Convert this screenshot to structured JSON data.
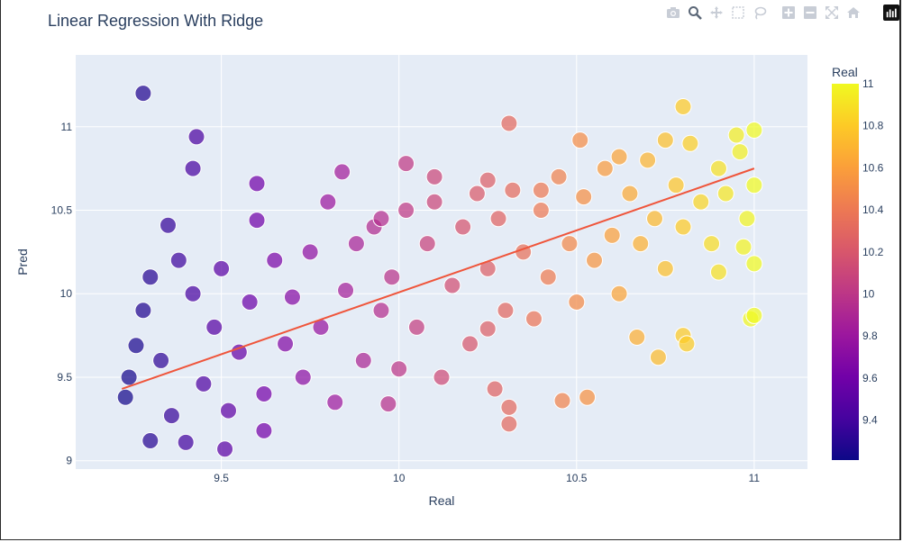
{
  "title": "Linear Regression With Ridge",
  "modebar": {
    "icons": [
      "camera-icon",
      "zoom-icon",
      "pan-icon",
      "box-select-icon",
      "lasso-icon",
      "zoom-in-icon",
      "zoom-out-icon",
      "autoscale-icon",
      "reset-axes-icon"
    ],
    "logo": "plotly-logo-icon"
  },
  "colorbar": {
    "title": "Real",
    "ticks": [
      "11",
      "10.8",
      "10.6",
      "10.4",
      "10.2",
      "10",
      "9.8",
      "9.6",
      "9.4"
    ],
    "tick_values": [
      11,
      10.8,
      10.6,
      10.4,
      10.2,
      10,
      9.8,
      9.6,
      9.4
    ],
    "range": [
      9.21,
      11.0
    ],
    "colorscale": [
      "#0d0887",
      "#46039f",
      "#7201a8",
      "#9c179e",
      "#bd3786",
      "#d8576b",
      "#ed7953",
      "#fb9f3a",
      "#fdca26",
      "#f0f921"
    ]
  },
  "chart_data": {
    "type": "scatter",
    "title": "Linear Regression With Ridge",
    "xlabel": "Real",
    "ylabel": "Pred",
    "xlim": [
      9.09,
      11.15
    ],
    "ylim": [
      8.95,
      11.43
    ],
    "x_ticks": [
      "9.5",
      "10",
      "10.5",
      "11"
    ],
    "x_tick_values": [
      9.5,
      10,
      10.5,
      11
    ],
    "y_ticks": [
      "9",
      "9.5",
      "10",
      "10.5",
      "11"
    ],
    "y_tick_values": [
      9,
      9.5,
      10,
      10.5,
      11
    ],
    "grid": true,
    "fit_line": {
      "color": "#ef553b",
      "x": [
        9.22,
        11.0
      ],
      "y": [
        9.43,
        10.75
      ]
    },
    "marker_color_by": "x",
    "points": [
      [
        9.28,
        11.2
      ],
      [
        9.43,
        10.94
      ],
      [
        9.42,
        10.75
      ],
      [
        9.35,
        10.41
      ],
      [
        9.6,
        10.66
      ],
      [
        9.84,
        10.73
      ],
      [
        10.31,
        11.02
      ],
      [
        10.51,
        10.92
      ],
      [
        10.8,
        11.12
      ],
      [
        10.02,
        10.78
      ],
      [
        9.3,
        9.12
      ],
      [
        9.4,
        9.11
      ],
      [
        9.51,
        9.07
      ],
      [
        9.97,
        9.34
      ],
      [
        10.31,
        9.22
      ],
      [
        10.31,
        9.32
      ],
      [
        10.46,
        9.36
      ],
      [
        10.53,
        9.38
      ],
      [
        10.27,
        9.43
      ],
      [
        9.62,
        9.18
      ],
      [
        10.73,
        9.62
      ],
      [
        10.8,
        9.75
      ],
      [
        10.81,
        9.7
      ],
      [
        10.99,
        9.85
      ],
      [
        11.0,
        9.87
      ],
      [
        11.0,
        10.18
      ],
      [
        10.97,
        10.28
      ],
      [
        10.9,
        10.13
      ],
      [
        10.67,
        9.74
      ],
      [
        10.25,
        9.79
      ],
      [
        9.23,
        9.38
      ],
      [
        9.24,
        9.5
      ],
      [
        9.26,
        9.69
      ],
      [
        9.28,
        9.9
      ],
      [
        9.3,
        10.1
      ],
      [
        9.33,
        9.6
      ],
      [
        9.36,
        9.27
      ],
      [
        9.38,
        10.2
      ],
      [
        9.42,
        10.0
      ],
      [
        9.45,
        9.46
      ],
      [
        9.48,
        9.8
      ],
      [
        9.5,
        10.15
      ],
      [
        9.52,
        9.3
      ],
      [
        9.55,
        9.65
      ],
      [
        9.58,
        9.95
      ],
      [
        9.6,
        10.44
      ],
      [
        9.62,
        9.4
      ],
      [
        9.65,
        10.2
      ],
      [
        9.68,
        9.7
      ],
      [
        9.7,
        9.98
      ],
      [
        9.73,
        9.5
      ],
      [
        9.75,
        10.25
      ],
      [
        9.78,
        9.8
      ],
      [
        9.8,
        10.55
      ],
      [
        9.82,
        9.35
      ],
      [
        9.85,
        10.02
      ],
      [
        9.88,
        10.3
      ],
      [
        9.9,
        9.6
      ],
      [
        9.93,
        10.4
      ],
      [
        9.95,
        9.9
      ],
      [
        9.98,
        10.1
      ],
      [
        10.0,
        9.55
      ],
      [
        10.02,
        10.5
      ],
      [
        10.05,
        9.8
      ],
      [
        10.08,
        10.3
      ],
      [
        10.1,
        10.7
      ],
      [
        10.12,
        9.5
      ],
      [
        10.15,
        10.05
      ],
      [
        10.18,
        10.4
      ],
      [
        10.2,
        9.7
      ],
      [
        10.22,
        10.6
      ],
      [
        10.25,
        10.15
      ],
      [
        10.28,
        10.45
      ],
      [
        10.3,
        9.9
      ],
      [
        10.32,
        10.62
      ],
      [
        10.35,
        10.25
      ],
      [
        10.38,
        9.85
      ],
      [
        10.4,
        10.5
      ],
      [
        10.42,
        10.1
      ],
      [
        10.45,
        10.7
      ],
      [
        10.48,
        10.3
      ],
      [
        10.5,
        9.95
      ],
      [
        10.52,
        10.58
      ],
      [
        10.55,
        10.2
      ],
      [
        10.58,
        10.75
      ],
      [
        10.6,
        10.35
      ],
      [
        10.62,
        10.0
      ],
      [
        10.65,
        10.6
      ],
      [
        10.68,
        10.3
      ],
      [
        10.7,
        10.8
      ],
      [
        10.72,
        10.45
      ],
      [
        10.75,
        10.15
      ],
      [
        10.78,
        10.65
      ],
      [
        10.8,
        10.4
      ],
      [
        10.82,
        10.9
      ],
      [
        10.85,
        10.55
      ],
      [
        10.88,
        10.3
      ],
      [
        10.9,
        10.75
      ],
      [
        10.92,
        10.6
      ],
      [
        10.95,
        10.95
      ],
      [
        10.98,
        10.45
      ],
      [
        11.0,
        10.65
      ],
      [
        11.0,
        10.98
      ],
      [
        10.96,
        10.85
      ],
      [
        10.75,
        10.92
      ],
      [
        10.62,
        10.82
      ],
      [
        10.4,
        10.62
      ],
      [
        10.25,
        10.68
      ],
      [
        10.1,
        10.55
      ],
      [
        9.95,
        10.45
      ]
    ]
  }
}
